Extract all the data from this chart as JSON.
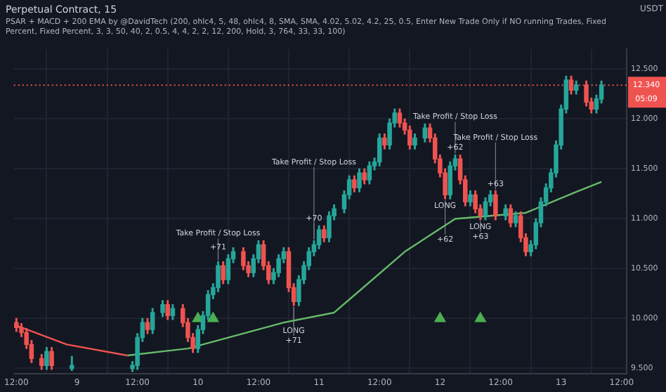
{
  "chart_data": {
    "type": "candlestick",
    "title": "Perpetual Contract, 15",
    "subtitle": "PSAR + MACD + 200 EMA by @DavidTech (200, ohlc4, 5, 48, ohlc4, 8, SMA, SMA, 4.02, 5.02, 4.2, 25, 0.5, Enter New Trade Only if NO running Trades, Fixed Percent, Fixed Percent, 3, 3, 50, 40, 2, 0.5, 4, 4, 2, 2, 12, 200, Hold, 3, 764, 33, 33, 100)",
    "ylabel": "USDT",
    "xlim": [
      "--01-08T11:30",
      "--01-13T13:00"
    ],
    "xticks": [
      {
        "value": "--01-08T12:00",
        "label": "12:00"
      },
      {
        "value": "--01-09",
        "label": "9"
      },
      {
        "value": "--01-09T12:00",
        "label": "12:00"
      },
      {
        "value": "--01-10",
        "label": "10"
      },
      {
        "value": "--01-10T12:00",
        "label": "12:00"
      },
      {
        "value": "--01-11",
        "label": "11"
      },
      {
        "value": "--01-11T12:00",
        "label": "12:00"
      },
      {
        "value": "--01-12",
        "label": "12"
      },
      {
        "value": "--01-12T12:00",
        "label": "12:00"
      },
      {
        "value": "--01-13",
        "label": "13"
      },
      {
        "value": "--01-13T12:00",
        "label": "12:00"
      }
    ],
    "ylim": [
      9.45,
      12.7
    ],
    "yticks": [
      {
        "value": 9.5,
        "label": "9.500"
      },
      {
        "value": 10,
        "label": "10.000"
      },
      {
        "value": 10.5,
        "label": "10.500"
      },
      {
        "value": 11,
        "label": "11.000"
      },
      {
        "value": 11.5,
        "label": "11.500"
      },
      {
        "value": 12,
        "label": "12.000"
      },
      {
        "value": 12.5,
        "label": "12.500"
      }
    ],
    "grid": true,
    "legend": false,
    "ref_lines": [
      {
        "axis": "y",
        "value": 12.34,
        "label": "12.340",
        "color": "#ef5350",
        "line_style": "dotted"
      }
    ],
    "annotations": [
      "05:09",
      {
        "text": "Take Profit / Stop Loss",
        "x": "--01-10T04:00",
        "y": 10.57
      },
      {
        "text": "+71",
        "x": "--01-10T04:00",
        "y": 10.57
      },
      {
        "text": "Take Profit / Stop Loss",
        "x": "--01-10T23:00",
        "y": 10.78
      },
      {
        "text": "+70",
        "x": "--01-10T23:00",
        "y": 10.78
      },
      {
        "text": "Take Profit / Stop Loss",
        "x": "--01-12T03:00",
        "y": 11.64
      },
      {
        "text": "+62",
        "x": "--01-12T03:00",
        "y": 11.64
      },
      {
        "text": "Take Profit / Stop Loss",
        "x": "--01-12T11:00",
        "y": 11.28
      },
      {
        "text": "+63",
        "x": "--01-12T11:00",
        "y": 11.28
      },
      {
        "text": "LONG",
        "x": "--01-10T19:00",
        "y": 10.13
      },
      {
        "text": "+71",
        "x": "--01-10T19:00",
        "y": 10.13
      },
      {
        "text": "LONG",
        "x": "--01-12T01:00",
        "y": 11.2
      },
      {
        "text": "+62",
        "x": "--01-12T01:00",
        "y": 11.2
      },
      {
        "text": "LONG",
        "x": "--01-12T08:00",
        "y": 10.99
      },
      {
        "text": "+63",
        "x": "--01-12T08:00",
        "y": 10.99
      }
    ],
    "series": [
      {
        "type": "line",
        "color": "#ef5350",
        "marker": "none",
        "x": [
          "--01-08T12:00",
          "--01-08T22:00",
          "--01-09T10:00"
        ],
        "values": [
          9.93,
          9.74,
          9.63
        ]
      },
      {
        "type": "line",
        "color": "#66bb6a",
        "marker": "none",
        "x": [
          "--01-09T10:00",
          "--01-09T22:00",
          "--01-10T17:00",
          "--01-11T03:00",
          "--01-11T17:00",
          "--01-12T03:00",
          "--01-12T17:00",
          "--01-13T03:00",
          "--01-13T08:00"
        ],
        "values": [
          9.63,
          9.7,
          9.96,
          10.06,
          10.67,
          11.0,
          11.06,
          11.27,
          11.37
        ]
      },
      {
        "type": "scatter",
        "color": "#4caf50",
        "marker": "triangle",
        "x": [
          "--01-10T00:00",
          "--01-10T03:00",
          "--01-12T00:00",
          "--01-12T08:00"
        ],
        "values": [
          10.0,
          10.0,
          10.0,
          10.0
        ]
      },
      {
        "x": [
          "--01-08T12:00",
          "--01-08T13:00",
          "--01-08T14:00",
          "--01-08T15:00",
          "--01-08T17:00",
          "--01-08T18:00",
          "--01-08T19:00",
          "--01-08T23:00",
          "--01-09T11:00",
          "--01-09T12:00",
          "--01-09T13:00",
          "--01-09T14:00",
          "--01-09T15:00",
          "--01-09T17:00",
          "--01-09T18:00",
          "--01-09T19:00",
          "--01-09T21:00",
          "--01-09T22:00",
          "--01-09T23:00",
          "--01-10T00:00",
          "--01-10T01:00",
          "--01-10T02:00",
          "--01-10T03:00",
          "--01-10T04:00",
          "--01-10T05:00",
          "--01-10T06:00",
          "--01-10T07:00",
          "--01-10T09:00",
          "--01-10T10:00",
          "--01-10T11:00",
          "--01-10T12:00",
          "--01-10T13:00",
          "--01-10T14:00",
          "--01-10T15:00",
          "--01-10T16:00",
          "--01-10T17:00",
          "--01-10T18:00",
          "--01-10T19:00",
          "--01-10T20:00",
          "--01-10T21:00",
          "--01-10T22:00",
          "--01-10T23:00",
          "--01-11T00:00",
          "--01-11T01:00",
          "--01-11T02:00",
          "--01-11T03:00",
          "--01-11T05:00",
          "--01-11T06:00",
          "--01-11T07:00",
          "--01-11T08:00",
          "--01-11T09:00",
          "--01-11T10:00",
          "--01-11T11:00",
          "--01-11T12:00",
          "--01-11T13:00",
          "--01-11T14:00",
          "--01-11T15:00",
          "--01-11T16:00",
          "--01-11T17:00",
          "--01-11T18:00",
          "--01-11T19:00",
          "--01-11T21:00",
          "--01-11T22:00",
          "--01-11T23:00",
          "--01-12T00:00",
          "--01-12T01:00",
          "--01-12T02:00",
          "--01-12T03:00",
          "--01-12T04:00",
          "--01-12T05:00",
          "--01-12T06:00",
          "--01-12T07:00",
          "--01-12T08:00",
          "--01-12T09:00",
          "--01-12T10:00",
          "--01-12T11:00",
          "--01-12T13:00",
          "--01-12T14:00",
          "--01-12T15:00",
          "--01-12T16:00",
          "--01-12T17:00",
          "--01-12T18:00",
          "--01-12T19:00",
          "--01-12T20:00",
          "--01-12T21:00",
          "--01-12T22:00",
          "--01-12T23:00",
          "--01-13T00:00",
          "--01-13T01:00",
          "--01-13T02:00",
          "--01-13T03:00",
          "--01-13T05:00",
          "--01-13T06:00",
          "--01-13T07:00",
          "--01-13T08:00"
        ],
        "colors": [
          "#ef5350",
          "#ef5350",
          "#ef5350",
          "#ef5350",
          "#ef5350",
          "#26a69a",
          "#ef5350",
          "#26a69a",
          "#26a69a",
          "#26a69a",
          "#26a69a",
          "#ef5350",
          "#26a69a",
          "#26a69a",
          "#ef5350",
          "#26a69a",
          "#ef5350",
          "#ef5350",
          "#ef5350",
          "#26a69a",
          "#26a69a",
          "#26a69a",
          "#26a69a",
          "#26a69a",
          "#ef5350",
          "#26a69a",
          "#26a69a",
          "#ef5350",
          "#ef5350",
          "#26a69a",
          "#26a69a",
          "#ef5350",
          "#ef5350",
          "#26a69a",
          "#26a69a",
          "#26a69a",
          "#ef5350",
          "#ef5350",
          "#26a69a",
          "#26a69a",
          "#26a69a",
          "#26a69a",
          "#26a69a",
          "#ef5350",
          "#26a69a",
          "#26a69a",
          "#26a69a",
          "#26a69a",
          "#ef5350",
          "#26a69a",
          "#ef5350",
          "#26a69a",
          "#26a69a",
          "#26a69a",
          "#ef5350",
          "#26a69a",
          "#26a69a",
          "#ef5350",
          "#ef5350",
          "#ef5350",
          "#26a69a",
          "#26a69a",
          "#ef5350",
          "#ef5350",
          "#ef5350",
          "#ef5350",
          "#26a69a",
          "#26a69a",
          "#ef5350",
          "#ef5350",
          "#26a69a",
          "#ef5350",
          "#ef5350",
          "#26a69a",
          "#26a69a",
          "#ef5350",
          "#26a69a",
          "#ef5350",
          "#26a69a",
          "#ef5350",
          "#ef5350",
          "#26a69a",
          "#26a69a",
          "#26a69a",
          "#26a69a",
          "#26a69a",
          "#26a69a",
          "#26a69a",
          "#26a69a",
          "#ef5350",
          "#26a69a",
          "#ef5350",
          "#ef5350",
          "#26a69a",
          "#26a69a"
        ],
        "ohlc": [
          [
            9.96,
            10.0,
            9.87,
            9.91
          ],
          [
            9.91,
            9.95,
            9.82,
            9.86
          ],
          [
            9.86,
            9.9,
            9.7,
            9.74
          ],
          [
            9.74,
            9.78,
            9.56,
            9.6
          ],
          [
            9.6,
            9.64,
            9.49,
            9.53
          ],
          [
            9.53,
            9.71,
            9.49,
            9.67
          ],
          [
            9.67,
            9.71,
            9.49,
            9.53
          ],
          [
            9.5,
            9.62,
            9.48,
            9.53
          ],
          [
            9.5,
            9.57,
            9.47,
            9.53
          ],
          [
            9.53,
            9.85,
            9.49,
            9.81
          ],
          [
            9.81,
            10.0,
            9.77,
            9.96
          ],
          [
            9.96,
            10.0,
            9.85,
            9.89
          ],
          [
            9.89,
            10.1,
            9.85,
            10.06
          ],
          [
            10.06,
            10.18,
            10.02,
            10.14
          ],
          [
            10.14,
            10.18,
            9.99,
            10.03
          ],
          [
            10.03,
            10.14,
            9.99,
            10.1
          ],
          [
            10.1,
            10.14,
            9.92,
            9.96
          ],
          [
            9.96,
            10.0,
            9.77,
            9.81
          ],
          [
            9.81,
            9.85,
            9.66,
            9.7
          ],
          [
            9.7,
            9.93,
            9.66,
            9.89
          ],
          [
            9.89,
            10.07,
            9.85,
            10.03
          ],
          [
            10.03,
            10.28,
            9.99,
            10.24
          ],
          [
            10.24,
            10.35,
            10.2,
            10.31
          ],
          [
            10.31,
            10.57,
            10.27,
            10.53
          ],
          [
            10.53,
            10.57,
            10.35,
            10.39
          ],
          [
            10.39,
            10.64,
            10.35,
            10.6
          ],
          [
            10.6,
            10.71,
            10.56,
            10.67
          ],
          [
            10.67,
            10.71,
            10.49,
            10.53
          ],
          [
            10.53,
            10.57,
            10.42,
            10.46
          ],
          [
            10.46,
            10.64,
            10.42,
            10.6
          ],
          [
            10.6,
            10.78,
            10.56,
            10.74
          ],
          [
            10.74,
            10.78,
            10.49,
            10.53
          ],
          [
            10.53,
            10.57,
            10.35,
            10.39
          ],
          [
            10.39,
            10.5,
            10.35,
            10.46
          ],
          [
            10.46,
            10.64,
            10.42,
            10.6
          ],
          [
            10.6,
            10.71,
            10.56,
            10.67
          ],
          [
            10.67,
            10.71,
            10.27,
            10.31
          ],
          [
            10.31,
            10.35,
            10.13,
            10.17
          ],
          [
            10.17,
            10.43,
            10.13,
            10.39
          ],
          [
            10.39,
            10.57,
            10.35,
            10.53
          ],
          [
            10.53,
            10.71,
            10.49,
            10.67
          ],
          [
            10.67,
            10.78,
            10.63,
            10.74
          ],
          [
            10.74,
            10.93,
            10.7,
            10.89
          ],
          [
            10.89,
            10.93,
            10.77,
            10.81
          ],
          [
            10.81,
            11.07,
            10.77,
            11.03
          ],
          [
            11.03,
            11.14,
            10.99,
            11.1
          ],
          [
            11.1,
            11.28,
            11.06,
            11.24
          ],
          [
            11.24,
            11.43,
            11.2,
            11.39
          ],
          [
            11.39,
            11.43,
            11.27,
            11.31
          ],
          [
            11.31,
            11.5,
            11.27,
            11.46
          ],
          [
            11.46,
            11.5,
            11.35,
            11.39
          ],
          [
            11.39,
            11.57,
            11.35,
            11.53
          ],
          [
            11.53,
            11.61,
            11.49,
            11.57
          ],
          [
            11.57,
            11.85,
            11.53,
            11.81
          ],
          [
            11.81,
            11.85,
            11.7,
            11.74
          ],
          [
            11.74,
            12.0,
            11.7,
            11.96
          ],
          [
            11.96,
            12.1,
            11.92,
            12.06
          ],
          [
            12.06,
            12.1,
            11.92,
            11.96
          ],
          [
            11.96,
            12.0,
            11.85,
            11.89
          ],
          [
            11.89,
            11.93,
            11.7,
            11.74
          ],
          [
            11.74,
            11.85,
            11.7,
            11.81
          ],
          [
            11.81,
            11.95,
            11.77,
            11.91
          ],
          [
            11.91,
            11.95,
            11.77,
            11.81
          ],
          [
            11.81,
            11.85,
            11.56,
            11.6
          ],
          [
            11.6,
            11.64,
            11.42,
            11.46
          ],
          [
            11.46,
            11.5,
            11.2,
            11.24
          ],
          [
            11.24,
            11.57,
            11.2,
            11.53
          ],
          [
            11.53,
            11.64,
            11.49,
            11.6
          ],
          [
            11.6,
            11.64,
            11.35,
            11.39
          ],
          [
            11.39,
            11.43,
            11.13,
            11.17
          ],
          [
            11.17,
            11.28,
            11.13,
            11.24
          ],
          [
            11.24,
            11.28,
            11.06,
            11.1
          ],
          [
            11.1,
            11.14,
            10.99,
            11.03
          ],
          [
            11.03,
            11.21,
            10.99,
            11.17
          ],
          [
            11.17,
            11.28,
            11.13,
            11.24
          ],
          [
            11.24,
            11.28,
            10.99,
            11.03
          ],
          [
            11.03,
            11.14,
            10.99,
            11.1
          ],
          [
            11.1,
            11.14,
            10.92,
            10.96
          ],
          [
            10.96,
            11.07,
            10.92,
            11.03
          ],
          [
            11.03,
            11.07,
            10.77,
            10.81
          ],
          [
            10.81,
            10.85,
            10.63,
            10.67
          ],
          [
            10.67,
            10.78,
            10.63,
            10.74
          ],
          [
            10.74,
            11.0,
            10.7,
            10.96
          ],
          [
            10.96,
            11.21,
            10.92,
            11.17
          ],
          [
            11.17,
            11.35,
            11.13,
            11.31
          ],
          [
            11.31,
            11.5,
            11.27,
            11.46
          ],
          [
            11.46,
            11.78,
            11.42,
            11.74
          ],
          [
            11.74,
            12.14,
            11.7,
            12.1
          ],
          [
            12.1,
            12.43,
            12.06,
            12.39
          ],
          [
            12.39,
            12.43,
            12.25,
            12.29
          ],
          [
            12.29,
            12.38,
            12.25,
            12.34
          ],
          [
            12.34,
            12.38,
            12.13,
            12.17
          ],
          [
            12.17,
            12.21,
            12.06,
            12.1
          ],
          [
            12.1,
            12.24,
            12.06,
            12.2
          ],
          [
            12.2,
            12.38,
            12.16,
            12.34
          ]
        ]
      }
    ]
  }
}
